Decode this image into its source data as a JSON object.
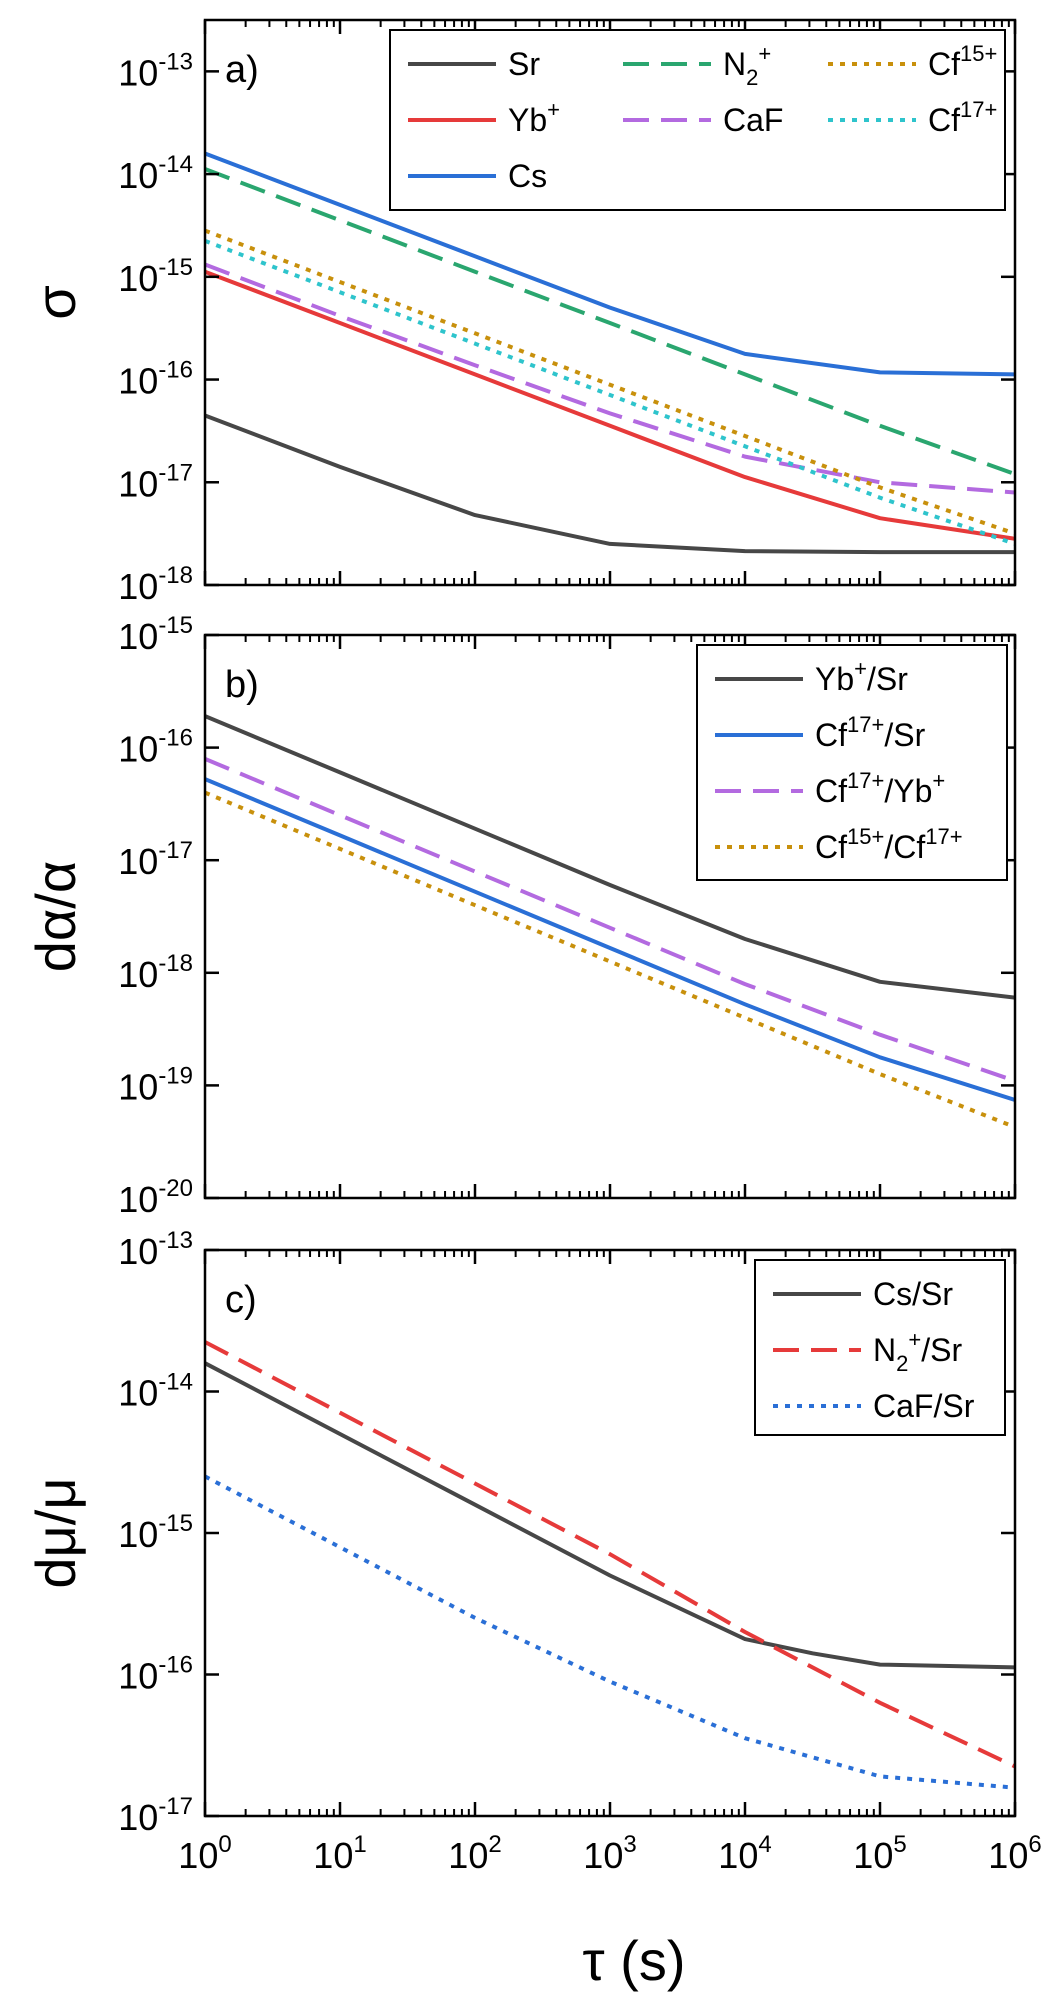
{
  "figure": {
    "xlabel": "τ (s)",
    "x_ticks": [
      {
        "base": "10",
        "exp": "0"
      },
      {
        "base": "10",
        "exp": "1"
      },
      {
        "base": "10",
        "exp": "2"
      },
      {
        "base": "10",
        "exp": "3"
      },
      {
        "base": "10",
        "exp": "4"
      },
      {
        "base": "10",
        "exp": "5"
      },
      {
        "base": "10",
        "exp": "6"
      }
    ]
  },
  "chart_data": [
    {
      "type": "line",
      "panel_label": "a)",
      "ylabel": "σ",
      "x_scale": "log",
      "y_scale": "log",
      "xlim_exp": [
        0,
        6
      ],
      "ylim_exp": [
        -18,
        -12.5
      ],
      "y_ticks": [
        {
          "base": "10",
          "exp": "-18",
          "value": -18
        },
        {
          "base": "10",
          "exp": "-17",
          "value": -17
        },
        {
          "base": "10",
          "exp": "-16",
          "value": -16
        },
        {
          "base": "10",
          "exp": "-15",
          "value": -15
        },
        {
          "base": "10",
          "exp": "-14",
          "value": -14
        },
        {
          "base": "10",
          "exp": "-13",
          "value": -13
        }
      ],
      "legend_position": "top-right",
      "series": [
        {
          "name": "Sr",
          "label_parts": [
            [
              "Sr",
              ""
            ]
          ],
          "color": "#474747",
          "dash": "solid",
          "x_exp": [
            0,
            1,
            2,
            3,
            4,
            5,
            6
          ],
          "y_log": [
            -16.35,
            -16.85,
            -17.32,
            -17.6,
            -17.67,
            -17.68,
            -17.68
          ]
        },
        {
          "name": "Yb+",
          "label_parts": [
            [
              "Yb",
              ""
            ],
            [
              "+",
              "sup"
            ]
          ],
          "color": "#e63a3a",
          "dash": "solid",
          "x_exp": [
            0,
            1,
            2,
            3,
            4,
            5,
            6
          ],
          "y_log": [
            -14.95,
            -15.45,
            -15.95,
            -16.45,
            -16.95,
            -17.35,
            -17.55
          ]
        },
        {
          "name": "Cs",
          "label_parts": [
            [
              "Cs",
              ""
            ]
          ],
          "color": "#2a6fd6",
          "dash": "solid",
          "x_exp": [
            0,
            1,
            2,
            3,
            4,
            5,
            6
          ],
          "y_log": [
            -13.8,
            -14.3,
            -14.8,
            -15.3,
            -15.75,
            -15.93,
            -15.95
          ]
        },
        {
          "name": "N2+",
          "label_parts": [
            [
              "N",
              ""
            ],
            [
              "2",
              "sub"
            ],
            [
              "+",
              "sup"
            ]
          ],
          "color": "#2aa66f",
          "dash": "dashed",
          "x_exp": [
            0,
            1,
            2,
            3,
            4,
            5,
            6
          ],
          "y_log": [
            -13.95,
            -14.45,
            -14.95,
            -15.45,
            -15.95,
            -16.45,
            -16.92
          ]
        },
        {
          "name": "CaF",
          "label_parts": [
            [
              "CaF",
              ""
            ]
          ],
          "color": "#b36ae0",
          "dash": "dashed",
          "x_exp": [
            0,
            1,
            2,
            3,
            4,
            5,
            6
          ],
          "y_log": [
            -14.88,
            -15.38,
            -15.86,
            -16.33,
            -16.75,
            -17.0,
            -17.1
          ]
        },
        {
          "name": "Cf15+",
          "label_parts": [
            [
              "Cf",
              ""
            ],
            [
              "15+",
              "sup"
            ]
          ],
          "color": "#c8900c",
          "dash": "dotted",
          "x_exp": [
            0,
            1,
            2,
            3,
            4,
            5,
            6
          ],
          "y_log": [
            -14.55,
            -15.05,
            -15.55,
            -16.05,
            -16.55,
            -17.05,
            -17.5
          ]
        },
        {
          "name": "Cf17+",
          "label_parts": [
            [
              "Cf",
              ""
            ],
            [
              "17+",
              "sup"
            ]
          ],
          "color": "#2ec4cc",
          "dash": "dotted",
          "x_exp": [
            0,
            1,
            2,
            3,
            4,
            5,
            6
          ],
          "y_log": [
            -14.65,
            -15.15,
            -15.65,
            -16.15,
            -16.65,
            -17.15,
            -17.6
          ]
        }
      ]
    },
    {
      "type": "line",
      "panel_label": "b)",
      "ylabel": "dα/α",
      "x_scale": "log",
      "y_scale": "log",
      "xlim_exp": [
        0,
        6
      ],
      "ylim_exp": [
        -20,
        -15
      ],
      "y_ticks": [
        {
          "base": "10",
          "exp": "-20",
          "value": -20
        },
        {
          "base": "10",
          "exp": "-19",
          "value": -19
        },
        {
          "base": "10",
          "exp": "-18",
          "value": -18
        },
        {
          "base": "10",
          "exp": "-17",
          "value": -17
        },
        {
          "base": "10",
          "exp": "-16",
          "value": -16
        },
        {
          "base": "10",
          "exp": "-15",
          "value": -15
        }
      ],
      "legend_position": "top-right",
      "series": [
        {
          "name": "Yb+/Sr",
          "label_parts": [
            [
              "Yb",
              ""
            ],
            [
              "+",
              "sup"
            ],
            [
              "/Sr",
              ""
            ]
          ],
          "color": "#474747",
          "dash": "solid",
          "x_exp": [
            0,
            1,
            2,
            3,
            4,
            5,
            6
          ],
          "y_log": [
            -15.72,
            -16.22,
            -16.72,
            -17.22,
            -17.7,
            -18.08,
            -18.22
          ]
        },
        {
          "name": "Cf17+/Sr",
          "label_parts": [
            [
              "Cf",
              ""
            ],
            [
              "17+",
              "sup"
            ],
            [
              "/Sr",
              ""
            ]
          ],
          "color": "#2a6fd6",
          "dash": "solid",
          "x_exp": [
            0,
            1,
            2,
            3,
            4,
            5,
            6
          ],
          "y_log": [
            -16.28,
            -16.78,
            -17.28,
            -17.78,
            -18.28,
            -18.75,
            -19.13
          ]
        },
        {
          "name": "Cf17+/Yb+",
          "label_parts": [
            [
              "Cf",
              ""
            ],
            [
              "17+",
              "sup"
            ],
            [
              "/Yb",
              ""
            ],
            [
              "+",
              "sup"
            ]
          ],
          "color": "#b36ae0",
          "dash": "dashed",
          "x_exp": [
            0,
            1,
            2,
            3,
            4,
            5,
            6
          ],
          "y_log": [
            -16.1,
            -16.6,
            -17.1,
            -17.6,
            -18.1,
            -18.55,
            -18.96
          ]
        },
        {
          "name": "Cf15+/Cf17+",
          "label_parts": [
            [
              "Cf",
              ""
            ],
            [
              "15+",
              "sup"
            ],
            [
              "/Cf",
              ""
            ],
            [
              "17+",
              "sup"
            ]
          ],
          "color": "#c8900c",
          "dash": "dotted",
          "x_exp": [
            0,
            1,
            2,
            3,
            4,
            5,
            6
          ],
          "y_log": [
            -16.4,
            -16.9,
            -17.4,
            -17.9,
            -18.4,
            -18.9,
            -19.37
          ]
        }
      ]
    },
    {
      "type": "line",
      "panel_label": "c)",
      "ylabel": "dμ/μ",
      "x_scale": "log",
      "y_scale": "log",
      "xlim_exp": [
        0,
        6
      ],
      "ylim_exp": [
        -17,
        -13
      ],
      "y_ticks": [
        {
          "base": "10",
          "exp": "-17",
          "value": -17
        },
        {
          "base": "10",
          "exp": "-16",
          "value": -16
        },
        {
          "base": "10",
          "exp": "-15",
          "value": -15
        },
        {
          "base": "10",
          "exp": "-14",
          "value": -14
        },
        {
          "base": "10",
          "exp": "-13",
          "value": -13
        }
      ],
      "legend_position": "top-right",
      "series": [
        {
          "name": "Cs/Sr",
          "label_parts": [
            [
              "Cs/Sr",
              ""
            ]
          ],
          "color": "#474747",
          "dash": "solid",
          "x_exp": [
            0,
            1,
            2,
            3,
            4,
            4.5,
            5,
            6
          ],
          "y_log": [
            -13.8,
            -14.3,
            -14.8,
            -15.3,
            -15.75,
            -15.85,
            -15.93,
            -15.95
          ]
        },
        {
          "name": "N2+/Sr",
          "label_parts": [
            [
              "N",
              ""
            ],
            [
              "2",
              "sub"
            ],
            [
              "+",
              "sup"
            ],
            [
              "/Sr",
              ""
            ]
          ],
          "color": "#e63a3a",
          "dash": "dashed",
          "x_exp": [
            0,
            1,
            2,
            3,
            4,
            5,
            6
          ],
          "y_log": [
            -13.65,
            -14.15,
            -14.65,
            -15.15,
            -15.7,
            -16.2,
            -16.65
          ]
        },
        {
          "name": "CaF/Sr",
          "label_parts": [
            [
              "CaF/Sr",
              ""
            ]
          ],
          "color": "#2a6fd6",
          "dash": "dotted",
          "x_exp": [
            0,
            1,
            2,
            3,
            4,
            5,
            6
          ],
          "y_log": [
            -14.6,
            -15.1,
            -15.6,
            -16.05,
            -16.45,
            -16.72,
            -16.8
          ]
        }
      ]
    }
  ]
}
